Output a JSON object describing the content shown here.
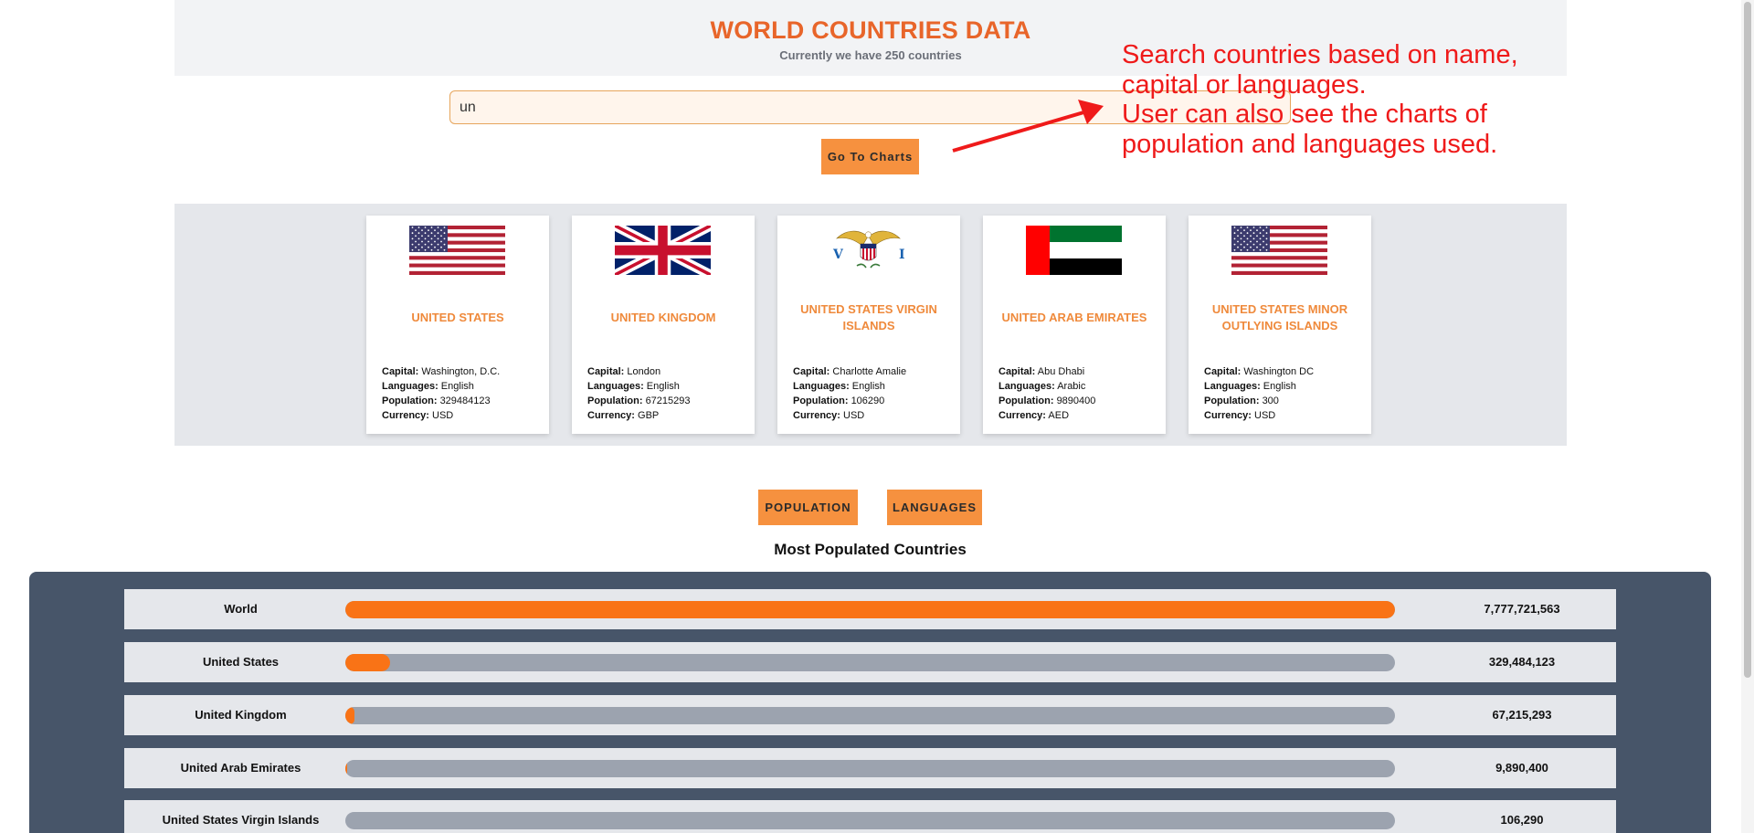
{
  "header": {
    "title": "WORLD COUNTRIES DATA",
    "subtitle": "Currently we have 250 countries"
  },
  "search": {
    "value": "un",
    "placeholder": ""
  },
  "buttons": {
    "go_to_charts": "Go To Charts",
    "population": "POPULATION",
    "languages": "LANGUAGES"
  },
  "annotation": {
    "lines": [
      "Search countries based on name,",
      "capital or languages.",
      "User can also see the charts of",
      "population and languages used."
    ],
    "color": "#ef1a1a"
  },
  "labels": {
    "capital": "Capital:",
    "languages": "Languages:",
    "population": "Population:",
    "currency": "Currency:"
  },
  "countries": [
    {
      "name": "United States",
      "flag": "us-flag-icon",
      "capital": "Washington, D.C.",
      "languages": "English",
      "population": "329484123",
      "currency": "USD"
    },
    {
      "name": "United Kingdom",
      "flag": "uk-flag-icon",
      "capital": "London",
      "languages": "English",
      "population": "67215293",
      "currency": "GBP"
    },
    {
      "name": "United States Virgin Islands",
      "flag": "usvi-flag-icon",
      "capital": "Charlotte Amalie",
      "languages": "English",
      "population": "106290",
      "currency": "USD"
    },
    {
      "name": "United Arab Emirates",
      "flag": "uae-flag-icon",
      "capital": "Abu Dhabi",
      "languages": "Arabic",
      "population": "9890400",
      "currency": "AED"
    },
    {
      "name": "United States Minor Outlying Islands",
      "flag": "us-flag-icon",
      "capital": "Washington DC",
      "languages": "English",
      "population": "300",
      "currency": "USD"
    }
  ],
  "chart_data": {
    "type": "bar",
    "title": "Most Populated Countries",
    "categories": [
      "World",
      "United States",
      "United Kingdom",
      "United Arab Emirates",
      "United States Virgin Islands"
    ],
    "values": [
      7777721563,
      329484123,
      67215293,
      9890400,
      106290
    ],
    "value_labels": [
      "7,777,721,563",
      "329,484,123",
      "67,215,293",
      "9,890,400",
      "106,290"
    ],
    "max": 7777721563,
    "colors": {
      "fill": "#f97316",
      "track": "#9ca3af",
      "panel": "#475569"
    }
  },
  "colors": {
    "accent": "#e8652a",
    "button": "#f6913f"
  }
}
